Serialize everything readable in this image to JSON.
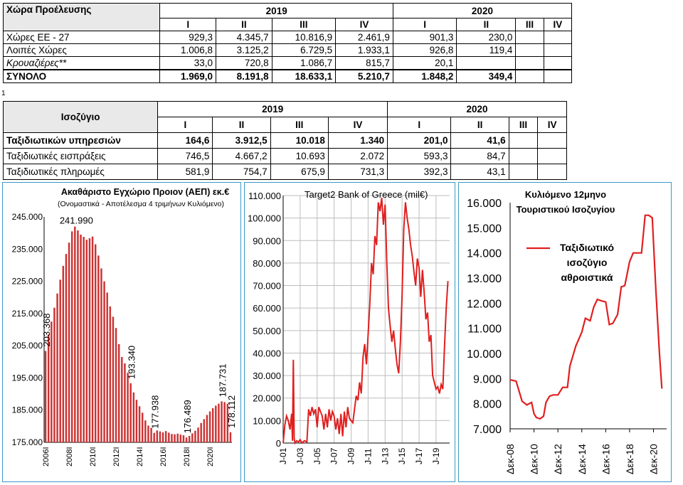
{
  "table1": {
    "title": "Χώρα Προέλευσης",
    "years": [
      "2019",
      "2020"
    ],
    "quarters": [
      "I",
      "II",
      "III",
      "IV",
      "I",
      "II",
      "III",
      "IV"
    ],
    "rows": [
      {
        "label": "Χώρες ΕΕ - 27",
        "values": [
          "929,3",
          "4.345,7",
          "10.816,9",
          "2.461,9",
          "901,3",
          "230,0",
          "",
          ""
        ]
      },
      {
        "label": "Λοιπές Χώρες",
        "values": [
          "1.006,8",
          "3.125,2",
          "6.729,5",
          "1.933,1",
          "926,8",
          "119,4",
          "",
          ""
        ]
      },
      {
        "label": "Κρουαζιέρες**",
        "values": [
          "33,0",
          "720,8",
          "1.086,7",
          "815,7",
          "20,1",
          "",
          "",
          ""
        ]
      },
      {
        "label": "ΣΥΝΟΛΟ",
        "values": [
          "1.969,0",
          "8.191,8",
          "18.633,1",
          "5.210,7",
          "1.848,2",
          "349,4",
          "",
          ""
        ]
      }
    ]
  },
  "table2": {
    "title": "Ισοζύγιο",
    "years": [
      "2019",
      "2020"
    ],
    "quarters": [
      "I",
      "II",
      "III",
      "IV",
      "I",
      "II",
      "III",
      "IV"
    ],
    "rows": [
      {
        "label": "Ταξιδιωτικών υπηρεσιών",
        "values": [
          "164,6",
          "3.912,5",
          "10.018",
          "1.340",
          "201,0",
          "41,6",
          "",
          ""
        ]
      },
      {
        "label": "Ταξιδιωτικές εισπράξεις",
        "values": [
          "746,5",
          "4.667,2",
          "10.693",
          "2.072",
          "593,3",
          "84,7",
          "",
          ""
        ]
      },
      {
        "label": "Ταξιδιωτικές πληρωμές",
        "values": [
          "581,9",
          "754,7",
          "675,9",
          "731,3",
          "392,3",
          "43,1",
          "",
          ""
        ]
      }
    ]
  },
  "small_mark": "1",
  "chart_data": [
    {
      "type": "bar",
      "title": "Ακαθάριστο Εγχώριο Προιον (ΑΕΠ) εκ.€",
      "subtitle": "(Ονομαστικά - Αποτέλεσμα 4 τριμήνων Κυλιόμενο)",
      "color": "#cc3333",
      "ylim": [
        175000,
        245000
      ],
      "yticks": [
        "245.000",
        "235.000",
        "225.000",
        "215.000",
        "205.000",
        "195.000",
        "185.000",
        "175.000"
      ],
      "xticks": [
        "2006I",
        "2008I",
        "2010I",
        "2012I",
        "2014I",
        "2016I",
        "2018I",
        "2020I"
      ],
      "values": [
        203368,
        208500,
        212500,
        216800,
        221200,
        225500,
        229800,
        233500,
        237000,
        240500,
        241990,
        240800,
        239500,
        238800,
        237900,
        238400,
        238900,
        236500,
        233000,
        229000,
        225000,
        221500,
        217200,
        214000,
        210500,
        205500,
        201500,
        199500,
        196600,
        193340,
        190500,
        188200,
        186200,
        184200,
        181800,
        180200,
        179500,
        177938,
        178700,
        178400,
        178100,
        178500,
        178000,
        177600,
        177500,
        177700,
        177400,
        177200,
        176489,
        177000,
        177800,
        178600,
        179600,
        181000,
        182200,
        183500,
        184600,
        185600,
        186400,
        187000,
        187731,
        187500,
        187000,
        178112
      ],
      "annotations": [
        {
          "text": "241.990",
          "index": 10
        },
        {
          "text": "203.368",
          "index": 0
        },
        {
          "text": "193.340",
          "index": 29
        },
        {
          "text": "177.938",
          "index": 37
        },
        {
          "text": "176.489",
          "index": 48
        },
        {
          "text": "187.731",
          "index": 60
        },
        {
          "text": "178.112",
          "index": 63
        }
      ]
    },
    {
      "type": "line",
      "title": "Target2   Bank of Greece (mil€)",
      "color": "#e01f1f",
      "ylim": [
        0,
        110000
      ],
      "yticks": [
        "0",
        "10.000",
        "20.000",
        "30.000",
        "40.000",
        "50.000",
        "60.000",
        "70.000",
        "80.000",
        "90.000",
        "100.000",
        "110.000"
      ],
      "xticks": [
        "J-01",
        "J-03",
        "J-05",
        "J-07",
        "J-09",
        "J-11",
        "J-13",
        "J-15",
        "J-17",
        "J-19"
      ],
      "x": [
        2001.0,
        2001.2,
        2001.4,
        2001.6,
        2001.8,
        2002.0,
        2002.1,
        2002.2,
        2002.3,
        2002.4,
        2002.6,
        2002.8,
        2003.0,
        2003.2,
        2003.5,
        2003.8,
        2004.0,
        2004.2,
        2004.4,
        2004.6,
        2004.8,
        2005.0,
        2005.2,
        2005.4,
        2005.6,
        2005.8,
        2006.0,
        2006.2,
        2006.4,
        2006.6,
        2006.8,
        2007.0,
        2007.2,
        2007.4,
        2007.6,
        2007.8,
        2008.0,
        2008.2,
        2008.4,
        2008.6,
        2008.8,
        2009.0,
        2009.2,
        2009.4,
        2009.6,
        2009.8,
        2010.0,
        2010.2,
        2010.4,
        2010.6,
        2010.8,
        2011.0,
        2011.2,
        2011.4,
        2011.6,
        2011.8,
        2012.0,
        2012.2,
        2012.4,
        2012.6,
        2012.8,
        2013.0,
        2013.2,
        2013.4,
        2013.6,
        2013.8,
        2014.0,
        2014.2,
        2014.4,
        2014.6,
        2014.8,
        2015.0,
        2015.2,
        2015.4,
        2015.6,
        2015.8,
        2016.0,
        2016.2,
        2016.4,
        2016.6,
        2016.8,
        2017.0,
        2017.2,
        2017.4,
        2017.6,
        2017.8,
        2018.0,
        2018.2,
        2018.4,
        2018.6,
        2018.8,
        2019.0,
        2019.2,
        2019.4,
        2019.6,
        2019.8,
        2020.0,
        2020.2,
        2020.4
      ],
      "values": [
        0,
        8000,
        12000,
        10000,
        6000,
        13000,
        1000,
        37000,
        2000,
        0,
        1000,
        500,
        1500,
        0,
        1000,
        500,
        15000,
        12000,
        16000,
        13000,
        15000,
        7000,
        16000,
        14000,
        12000,
        6000,
        13000,
        7000,
        15000,
        10000,
        14000,
        12000,
        6000,
        11000,
        4000,
        13000,
        3000,
        14000,
        7000,
        16000,
        11000,
        10000,
        9000,
        15000,
        21000,
        19000,
        27000,
        22000,
        38000,
        44000,
        35000,
        48000,
        62000,
        80000,
        75000,
        92000,
        88000,
        107000,
        103000,
        109000,
        97000,
        106000,
        80000,
        60000,
        52000,
        45000,
        50000,
        42000,
        35000,
        31000,
        45000,
        65000,
        95000,
        107000,
        100000,
        95000,
        88000,
        83000,
        76000,
        70000,
        82000,
        78000,
        65000,
        77000,
        67000,
        55000,
        58000,
        45000,
        48000,
        30000,
        27000,
        24000,
        25000,
        22000,
        26000,
        24000,
        43000,
        60000,
        72000
      ]
    },
    {
      "type": "line",
      "title": "Κυλιόμενο 12μηνο Τουριστικού Ισοζυγίου",
      "title_lines": [
        "Κυλιόμενο 12μηνο",
        "Τουριστικού Ισοζυγίου"
      ],
      "legend": [
        "Ταξιδιωτικό",
        "ισοζύγιο",
        "αθροιστικά"
      ],
      "color": "#e01f1f",
      "ylim": [
        7000,
        16000
      ],
      "yticks": [
        "16.000",
        "15.000",
        "14.000",
        "13.000",
        "12.000",
        "11.000",
        "10.000",
        "9.000",
        "8.000",
        "7.000"
      ],
      "xticks": [
        "Δεκ-08",
        "Δεκ-10",
        "Δεκ-12",
        "Δεκ-14",
        "Δεκ-16",
        "Δεκ-18",
        "Δεκ-20"
      ],
      "x": [
        2008.0,
        2008.5,
        2009.0,
        2009.4,
        2009.8,
        2010.0,
        2010.2,
        2010.5,
        2010.8,
        2011.0,
        2011.3,
        2011.6,
        2012.0,
        2012.4,
        2012.8,
        2013.0,
        2013.5,
        2014.0,
        2014.3,
        2014.7,
        2015.0,
        2015.3,
        2015.6,
        2016.0,
        2016.3,
        2016.6,
        2017.0,
        2017.3,
        2017.6,
        2018.0,
        2018.3,
        2018.6,
        2019.0,
        2019.3,
        2019.6,
        2019.9,
        2020.2,
        2020.5,
        2020.7
      ],
      "values": [
        8950,
        8900,
        8100,
        7950,
        8050,
        7600,
        7450,
        7400,
        7500,
        8050,
        8300,
        8350,
        8350,
        8650,
        8650,
        9500,
        10300,
        10850,
        11400,
        11300,
        11850,
        12150,
        12100,
        12050,
        11150,
        11200,
        11550,
        12650,
        12700,
        13650,
        14000,
        14000,
        14000,
        15500,
        15500,
        15400,
        12500,
        10000,
        8600
      ]
    }
  ]
}
